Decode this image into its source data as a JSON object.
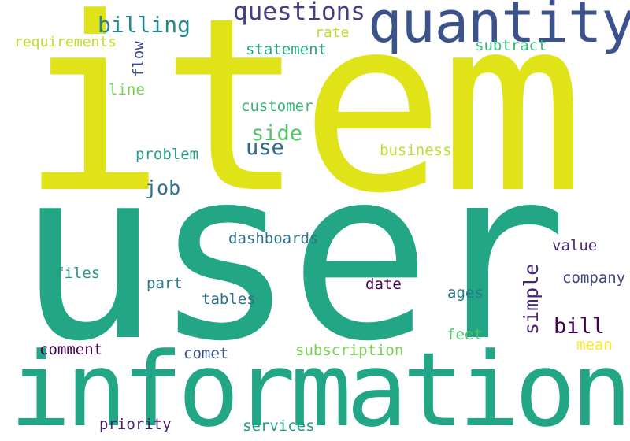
{
  "words": {
    "item": {
      "text": "item",
      "color": "#dfe318"
    },
    "user": {
      "text": "user",
      "color": "#22a685"
    },
    "information": {
      "text": "information",
      "color": "#22a685"
    },
    "quantity": {
      "text": "quantity",
      "color": "#3b528b"
    },
    "questions": {
      "text": "questions",
      "color": "#433e85"
    },
    "billing": {
      "text": "billing",
      "color": "#23888e"
    },
    "requirements": {
      "text": "requirements",
      "color": "#bddf26"
    },
    "rate": {
      "text": "rate",
      "color": "#bddf26"
    },
    "flow": {
      "text": "flow",
      "color": "#3e4989"
    },
    "statement": {
      "text": "statement",
      "color": "#23a983"
    },
    "subtract": {
      "text": "subtract",
      "color": "#35b779"
    },
    "line": {
      "text": "line",
      "color": "#7ad151"
    },
    "customer": {
      "text": "customer",
      "color": "#35b779"
    },
    "side": {
      "text": "side",
      "color": "#52c569"
    },
    "use": {
      "text": "use",
      "color": "#31688e"
    },
    "business": {
      "text": "business",
      "color": "#bddf26"
    },
    "problem": {
      "text": "problem",
      "color": "#2a9d8f"
    },
    "job": {
      "text": "job",
      "color": "#2c728e"
    },
    "dashboards": {
      "text": "dashboards",
      "color": "#2c728e"
    },
    "value": {
      "text": "value",
      "color": "#482878"
    },
    "files": {
      "text": "files",
      "color": "#1f9e89"
    },
    "part": {
      "text": "part",
      "color": "#2a788e"
    },
    "simple": {
      "text": "simple",
      "color": "#482677"
    },
    "company": {
      "text": "company",
      "color": "#414487"
    },
    "date": {
      "text": "date",
      "color": "#440154"
    },
    "tables": {
      "text": "tables",
      "color": "#2c728e"
    },
    "ages": {
      "text": "ages",
      "color": "#2a788e"
    },
    "bill": {
      "text": "bill",
      "color": "#440154"
    },
    "comment": {
      "text": "comment",
      "color": "#440154"
    },
    "comet": {
      "text": "comet",
      "color": "#3b528b"
    },
    "subscription": {
      "text": "subscription",
      "color": "#7ad151"
    },
    "feet": {
      "text": "feet",
      "color": "#52c569"
    },
    "mean": {
      "text": "mean",
      "color": "#fde725"
    },
    "priority": {
      "text": "priority",
      "color": "#481f70"
    },
    "services": {
      "text": "services",
      "color": "#1fa187"
    }
  }
}
